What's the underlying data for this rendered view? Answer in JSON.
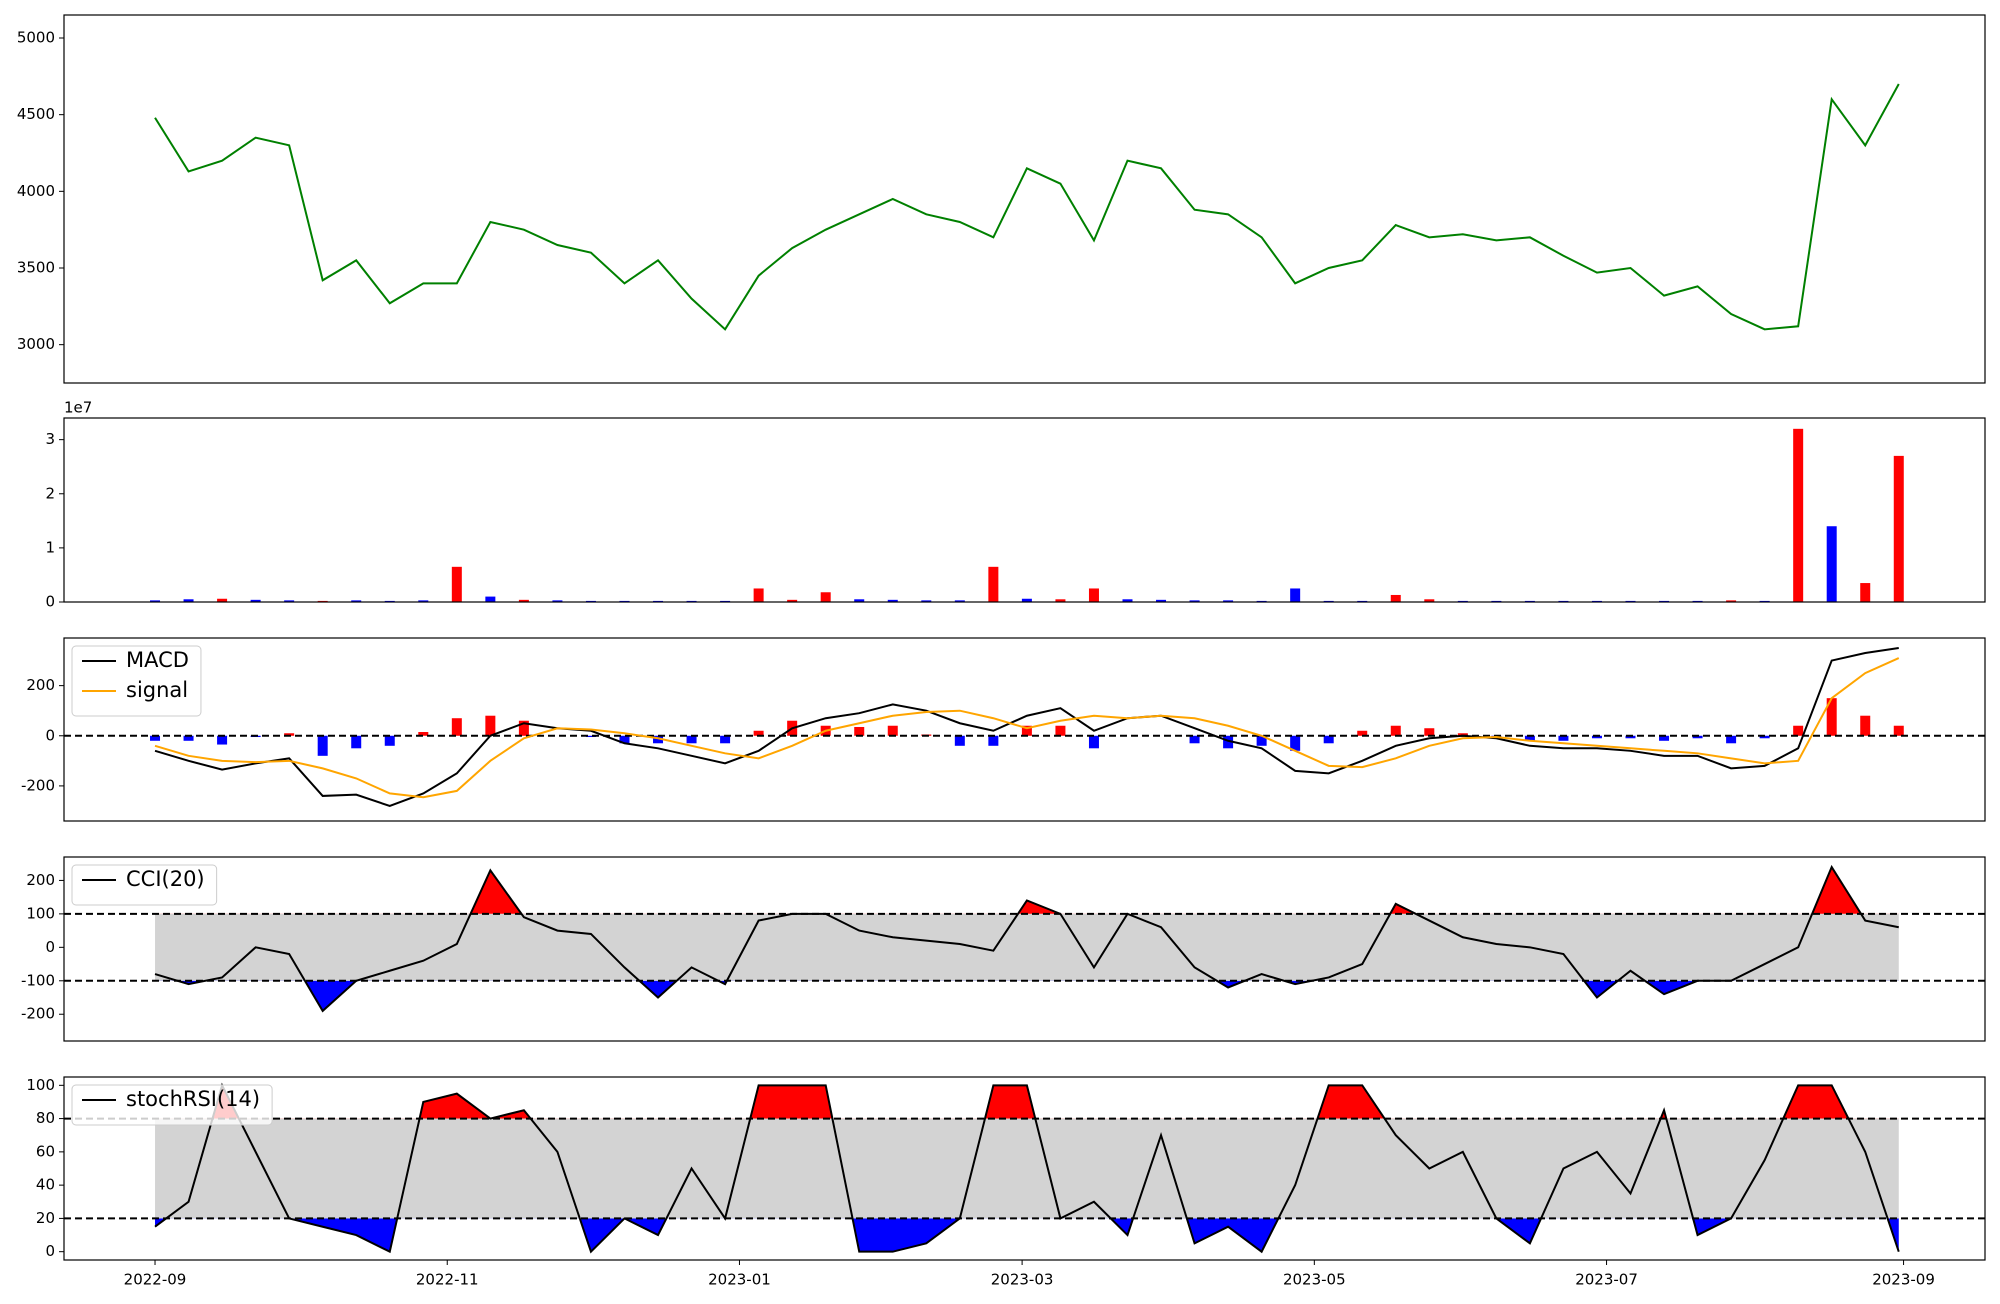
{
  "chart_data": [
    {
      "type": "line",
      "ylim": [
        2750,
        5150
      ],
      "yticks": [
        3000,
        3500,
        4000,
        4500,
        5000
      ],
      "series": [
        {
          "type": "line",
          "color": "#008000",
          "values": [
            4480,
            4130,
            4200,
            4350,
            4300,
            3420,
            3550,
            3270,
            3400,
            3400,
            3800,
            3750,
            3650,
            3600,
            3400,
            3550,
            3300,
            3100,
            3450,
            3630,
            3750,
            3850,
            3950,
            3850,
            3800,
            3700,
            4150,
            4050,
            3680,
            4200,
            4150,
            3880,
            3850,
            3700,
            3400,
            3500,
            3550,
            3780,
            3700,
            3720,
            3680,
            3700,
            3580,
            3470,
            3500,
            3320,
            3380,
            3200,
            3100,
            3120,
            4600,
            4300,
            4700
          ]
        }
      ]
    },
    {
      "type": "bar",
      "ylim": [
        0,
        3.4
      ],
      "yticks": [
        0,
        1,
        2,
        3
      ],
      "y_offset_label": "1e7",
      "series": [
        {
          "type": "bar",
          "values": [
            0.03,
            0.05,
            0.06,
            0.04,
            0.03,
            0.02,
            0.03,
            0.02,
            0.03,
            0.65,
            0.1,
            0.04,
            0.03,
            0.02,
            0.02,
            0.02,
            0.02,
            0.02,
            0.25,
            0.04,
            0.18,
            0.05,
            0.04,
            0.03,
            0.03,
            0.65,
            0.06,
            0.05,
            0.25,
            0.05,
            0.04,
            0.03,
            0.03,
            0.02,
            0.25,
            0.02,
            0.02,
            0.13,
            0.05,
            0.02,
            0.02,
            0.02,
            0.02,
            0.02,
            0.02,
            0.02,
            0.02,
            0.03,
            0.02,
            3.2,
            1.4,
            0.35,
            2.7
          ],
          "colors": [
            "#0000ff",
            "#0000ff",
            "#ff0000",
            "#0000ff",
            "#0000ff",
            "#ff0000",
            "#0000ff",
            "#0000ff",
            "#0000ff",
            "#ff0000",
            "#0000ff",
            "#ff0000",
            "#0000ff",
            "#0000ff",
            "#0000ff",
            "#0000ff",
            "#0000ff",
            "#0000ff",
            "#ff0000",
            "#ff0000",
            "#ff0000",
            "#0000ff",
            "#0000ff",
            "#0000ff",
            "#0000ff",
            "#ff0000",
            "#0000ff",
            "#ff0000",
            "#ff0000",
            "#0000ff",
            "#0000ff",
            "#0000ff",
            "#0000ff",
            "#0000ff",
            "#0000ff",
            "#0000ff",
            "#0000ff",
            "#ff0000",
            "#ff0000",
            "#0000ff",
            "#0000ff",
            "#0000ff",
            "#0000ff",
            "#0000ff",
            "#0000ff",
            "#0000ff",
            "#0000ff",
            "#ff0000",
            "#0000ff",
            "#ff0000",
            "#0000ff",
            "#ff0000",
            "#ff0000"
          ]
        }
      ]
    },
    {
      "type": "line",
      "ylim": [
        -340,
        390
      ],
      "yticks": [
        -200,
        0,
        200
      ],
      "hlines": [
        0
      ],
      "legend": "upper left",
      "series": [
        {
          "type": "bar",
          "pos_color": "#ff0000",
          "neg_color": "#0000ff",
          "values": [
            -20,
            -20,
            -35,
            -5,
            10,
            -80,
            -50,
            -40,
            15,
            70,
            80,
            60,
            0,
            -5,
            -30,
            -30,
            -30,
            -30,
            20,
            60,
            40,
            35,
            40,
            5,
            -40,
            -40,
            40,
            40,
            -50,
            0,
            0,
            -30,
            -50,
            -40,
            -60,
            -30,
            20,
            40,
            30,
            10,
            -5,
            -20,
            -20,
            -10,
            -10,
            -20,
            -10,
            -30,
            -10,
            40,
            150,
            80,
            40
          ]
        },
        {
          "type": "line",
          "name": "MACD",
          "color": "#000000",
          "values": [
            -60,
            -100,
            -135,
            -110,
            -90,
            -240,
            -235,
            -280,
            -230,
            -150,
            0,
            50,
            30,
            20,
            -30,
            -50,
            -80,
            -110,
            -60,
            30,
            70,
            90,
            125,
            100,
            50,
            20,
            80,
            110,
            20,
            70,
            80,
            30,
            -20,
            -50,
            -140,
            -150,
            -100,
            -40,
            -10,
            0,
            -10,
            -40,
            -50,
            -50,
            -60,
            -80,
            -80,
            -130,
            -120,
            -50,
            300,
            330,
            350
          ]
        },
        {
          "type": "line",
          "name": "signal",
          "color": "#ffa500",
          "values": [
            -40,
            -80,
            -100,
            -105,
            -100,
            -130,
            -170,
            -230,
            -245,
            -220,
            -100,
            -10,
            30,
            25,
            10,
            -10,
            -40,
            -70,
            -90,
            -40,
            20,
            50,
            80,
            95,
            100,
            70,
            30,
            60,
            80,
            70,
            80,
            70,
            40,
            0,
            -60,
            -120,
            -125,
            -90,
            -40,
            -10,
            -5,
            -20,
            -30,
            -40,
            -50,
            -60,
            -70,
            -90,
            -110,
            -100,
            150,
            250,
            310
          ]
        }
      ]
    },
    {
      "type": "line",
      "ylim": [
        -280,
        270
      ],
      "yticks": [
        -200,
        -100,
        0,
        100,
        200
      ],
      "hlines": [
        -100,
        100
      ],
      "band_color": "#d3d3d3",
      "above_color": "#ff0000",
      "below_color": "#0000ff",
      "legend": "upper left",
      "series": [
        {
          "type": "line",
          "name": "CCI(20)",
          "color": "#000000",
          "values": [
            -80,
            -110,
            -90,
            0,
            -20,
            -190,
            -100,
            -70,
            -40,
            10,
            230,
            90,
            50,
            40,
            -60,
            -150,
            -60,
            -110,
            80,
            100,
            100,
            50,
            30,
            20,
            10,
            -10,
            140,
            100,
            -60,
            100,
            60,
            -60,
            -120,
            -80,
            -110,
            -90,
            -50,
            130,
            80,
            30,
            10,
            0,
            -20,
            -150,
            -70,
            -140,
            -100,
            -100,
            -50,
            0,
            240,
            80,
            60
          ]
        }
      ]
    },
    {
      "type": "line",
      "ylim": [
        -5,
        105
      ],
      "yticks": [
        0,
        20,
        40,
        60,
        80,
        100
      ],
      "hlines": [
        20,
        80
      ],
      "band_color": "#d3d3d3",
      "above_color": "#ff0000",
      "below_color": "#0000ff",
      "legend": "upper left",
      "xlim": [
        "2022-08-13",
        "2023-09-18"
      ],
      "xticks": [
        {
          "value": "2022-09-01",
          "label": "2022-09"
        },
        {
          "value": "2022-11-01",
          "label": "2022-11"
        },
        {
          "value": "2023-01-01",
          "label": "2023-01"
        },
        {
          "value": "2023-03-01",
          "label": "2023-03"
        },
        {
          "value": "2023-05-01",
          "label": "2023-05"
        },
        {
          "value": "2023-07-01",
          "label": "2023-07"
        },
        {
          "value": "2023-09-01",
          "label": "2023-09"
        }
      ],
      "x": [
        "2022-09-01",
        "2022-09-08",
        "2022-09-15",
        "2022-09-22",
        "2022-09-29",
        "2022-10-06",
        "2022-10-13",
        "2022-10-20",
        "2022-10-27",
        "2022-11-03",
        "2022-11-10",
        "2022-11-17",
        "2022-11-24",
        "2022-12-01",
        "2022-12-08",
        "2022-12-15",
        "2022-12-22",
        "2022-12-29",
        "2023-01-05",
        "2023-01-12",
        "2023-01-19",
        "2023-01-26",
        "2023-02-02",
        "2023-02-09",
        "2023-02-16",
        "2023-02-23",
        "2023-03-02",
        "2023-03-09",
        "2023-03-16",
        "2023-03-23",
        "2023-03-30",
        "2023-04-06",
        "2023-04-13",
        "2023-04-20",
        "2023-04-27",
        "2023-05-04",
        "2023-05-11",
        "2023-05-18",
        "2023-05-25",
        "2023-06-01",
        "2023-06-08",
        "2023-06-15",
        "2023-06-22",
        "2023-06-29",
        "2023-07-06",
        "2023-07-13",
        "2023-07-20",
        "2023-07-27",
        "2023-08-03",
        "2023-08-10",
        "2023-08-17",
        "2023-08-24",
        "2023-08-31"
      ],
      "series": [
        {
          "type": "line",
          "name": "stochRSI(14)",
          "color": "#000000",
          "values": [
            15,
            30,
            100,
            60,
            20,
            15,
            10,
            0,
            90,
            95,
            80,
            85,
            60,
            0,
            20,
            10,
            50,
            20,
            100,
            100,
            100,
            0,
            0,
            5,
            20,
            100,
            100,
            20,
            30,
            10,
            70,
            5,
            15,
            0,
            40,
            100,
            100,
            70,
            50,
            60,
            20,
            5,
            50,
            60,
            35,
            85,
            10,
            20,
            55,
            100,
            100,
            60,
            0
          ]
        }
      ]
    }
  ]
}
